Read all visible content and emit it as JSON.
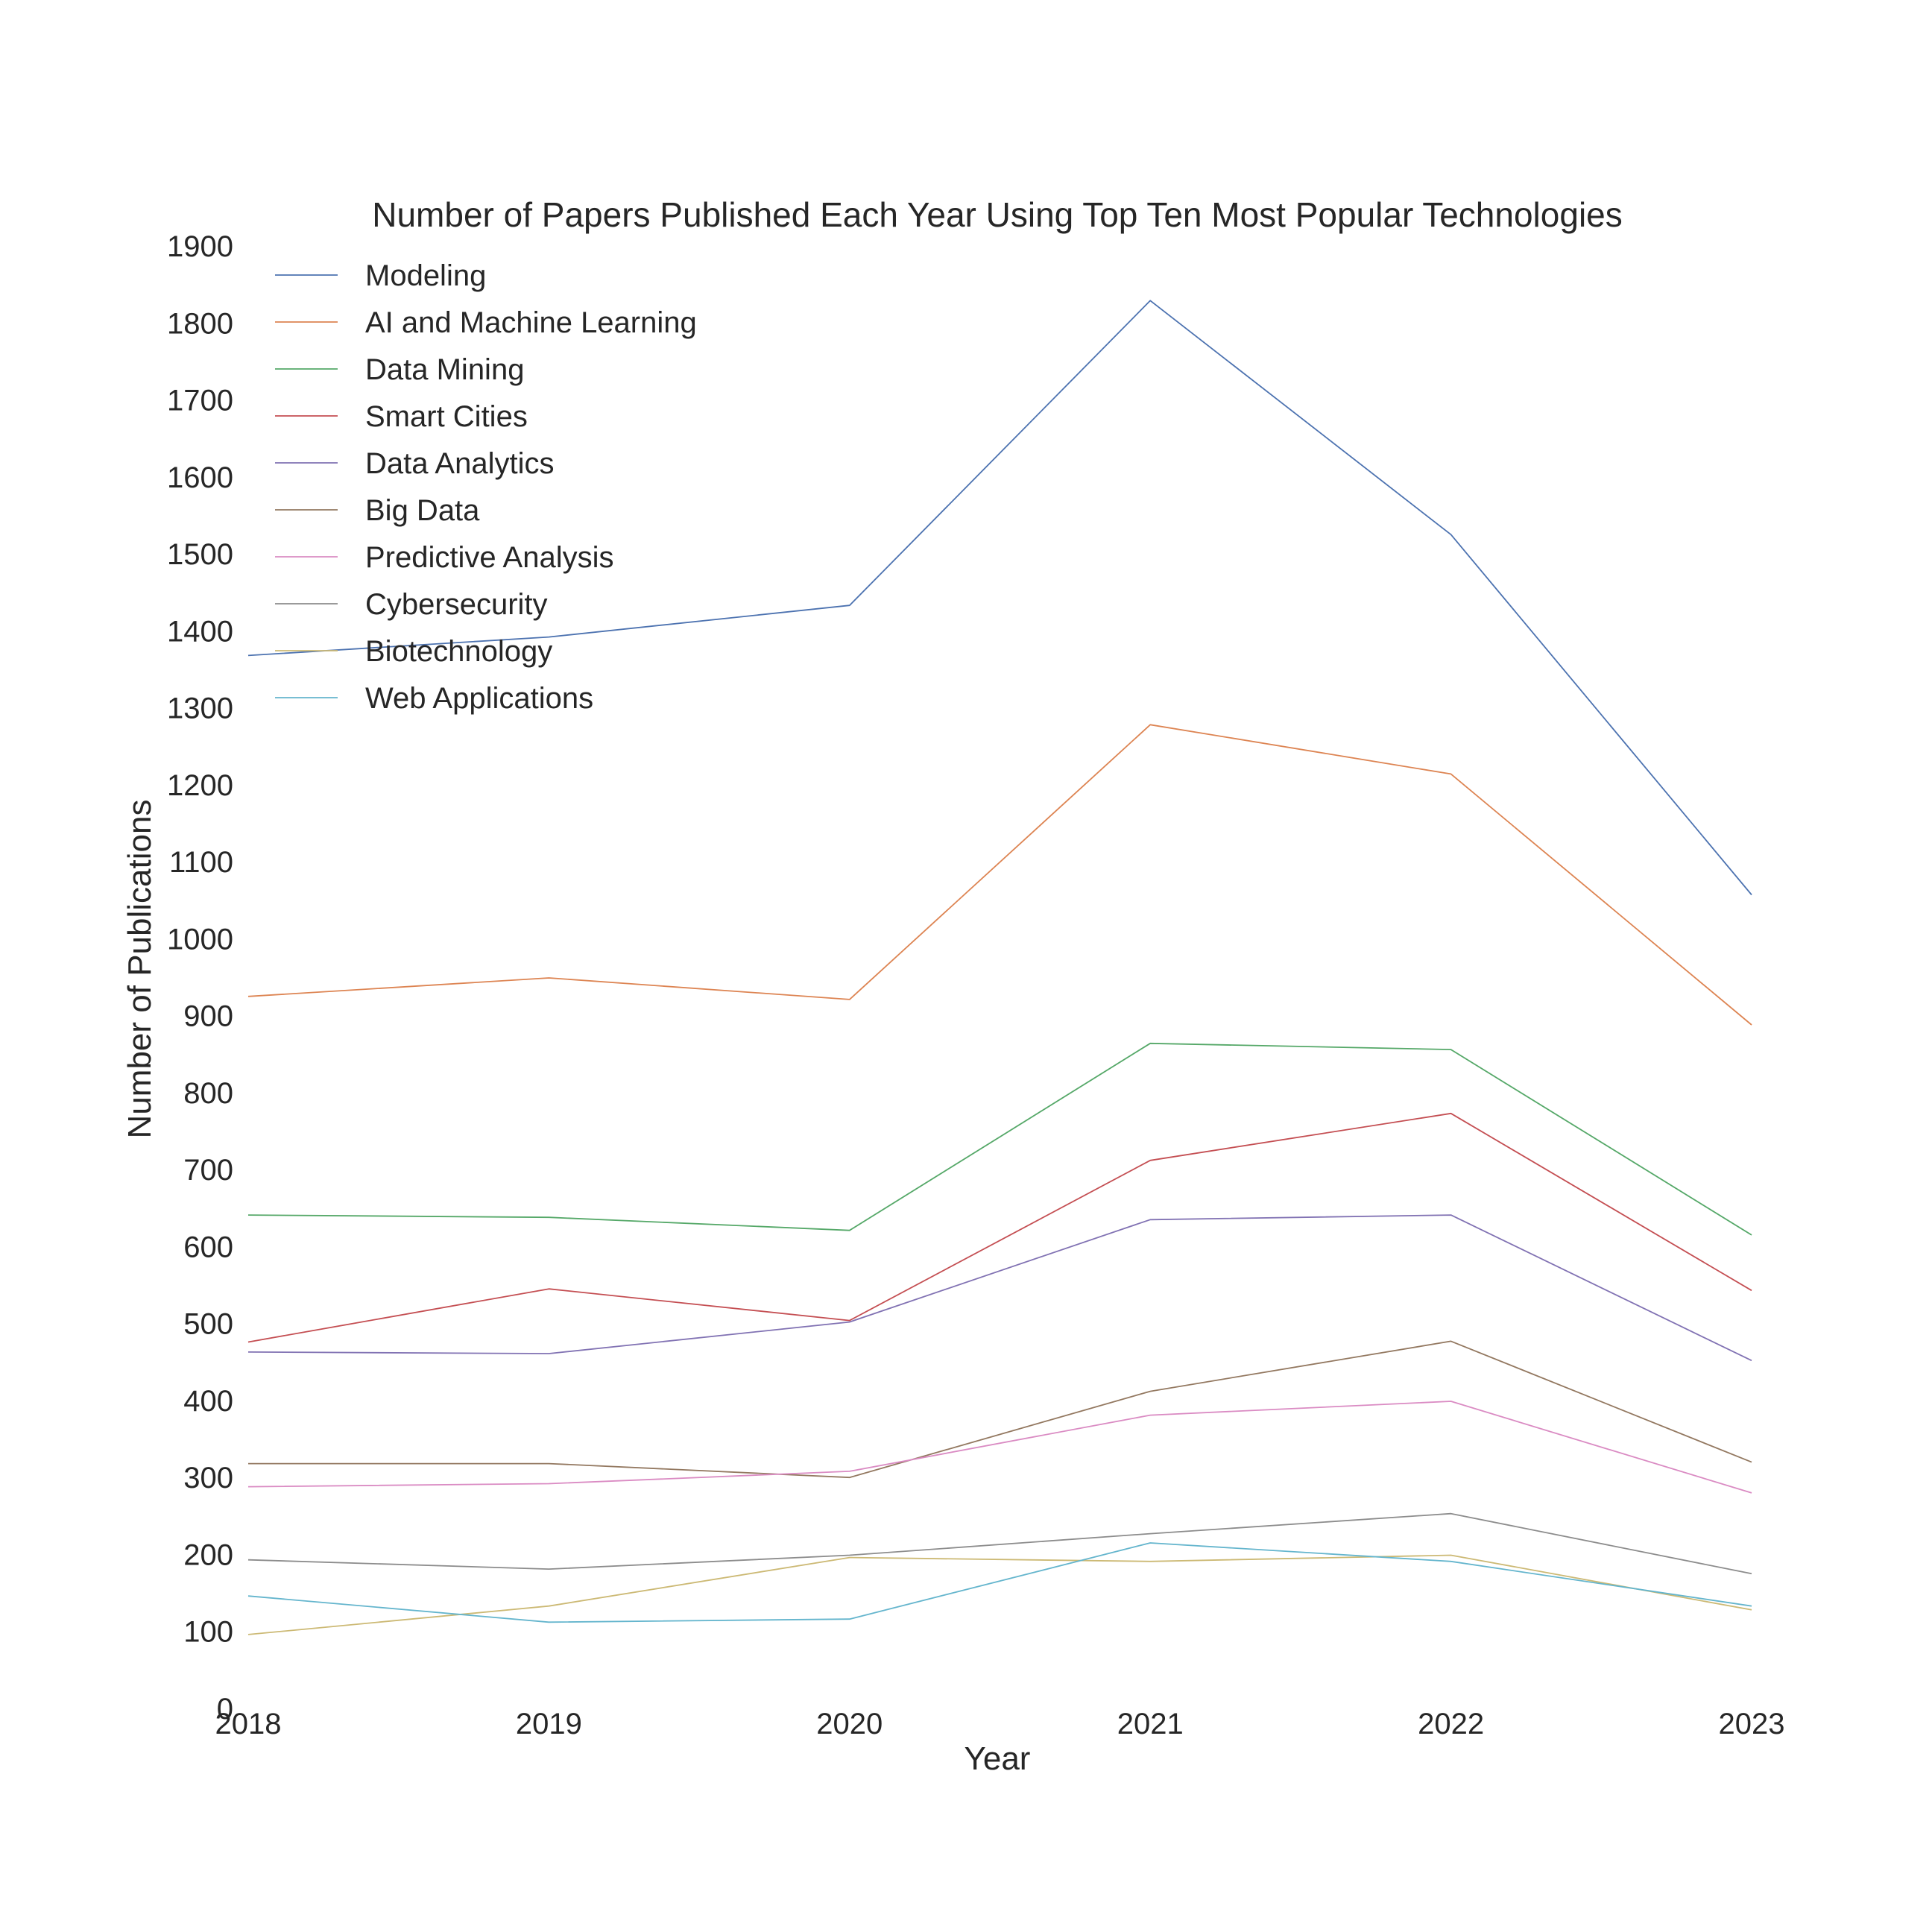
{
  "chart_data": {
    "type": "line",
    "title": "Number of Papers Published Each Year Using Top Ten Most Popular Technologies",
    "xlabel": "Year",
    "ylabel": "Number of Publications",
    "x": [
      2018,
      2019,
      2020,
      2021,
      2022,
      2023
    ],
    "xticks": [
      "2018",
      "2019",
      "2020",
      "2021",
      "2022",
      "2023"
    ],
    "xlim": [
      2018,
      2023
    ],
    "ylim": [
      0,
      1900
    ],
    "yticks": [
      "0",
      "100",
      "200",
      "300",
      "400",
      "500",
      "600",
      "700",
      "800",
      "900",
      "1000",
      "1100",
      "1200",
      "1300",
      "1400",
      "1500",
      "1600",
      "1700",
      "1800",
      "1900"
    ],
    "grid": false,
    "legend_position": "top-left",
    "series": [
      {
        "name": "Modeling",
        "color": "#4c72b0",
        "values": [
          1368,
          1392,
          1433,
          1829,
          1525,
          1057
        ]
      },
      {
        "name": "AI and Machine Learning",
        "color": "#dd8452",
        "values": [
          925,
          949,
          921,
          1278,
          1214,
          888
        ]
      },
      {
        "name": "Data Mining",
        "color": "#55a868",
        "values": [
          641,
          638,
          621,
          864,
          856,
          615
        ]
      },
      {
        "name": "Smart Cities",
        "color": "#c44e52",
        "values": [
          476,
          545,
          504,
          712,
          773,
          543
        ]
      },
      {
        "name": "Data Analytics",
        "color": "#8172b3",
        "values": [
          463,
          461,
          502,
          635,
          641,
          452
        ]
      },
      {
        "name": "Big Data",
        "color": "#937860",
        "values": [
          318,
          318,
          300,
          412,
          477,
          320
        ]
      },
      {
        "name": "Predictive Analysis",
        "color": "#da8bc3",
        "values": [
          288,
          292,
          308,
          381,
          399,
          280
        ]
      },
      {
        "name": "Cybersecurity",
        "color": "#8c8c8c",
        "values": [
          193,
          181,
          199,
          227,
          253,
          175
        ]
      },
      {
        "name": "Biotechnology",
        "color": "#ccb974",
        "values": [
          96,
          133,
          196,
          191,
          199,
          128
        ]
      },
      {
        "name": "Web Applications",
        "color": "#64b5cd",
        "values": [
          146,
          112,
          116,
          215,
          191,
          133
        ]
      }
    ]
  }
}
